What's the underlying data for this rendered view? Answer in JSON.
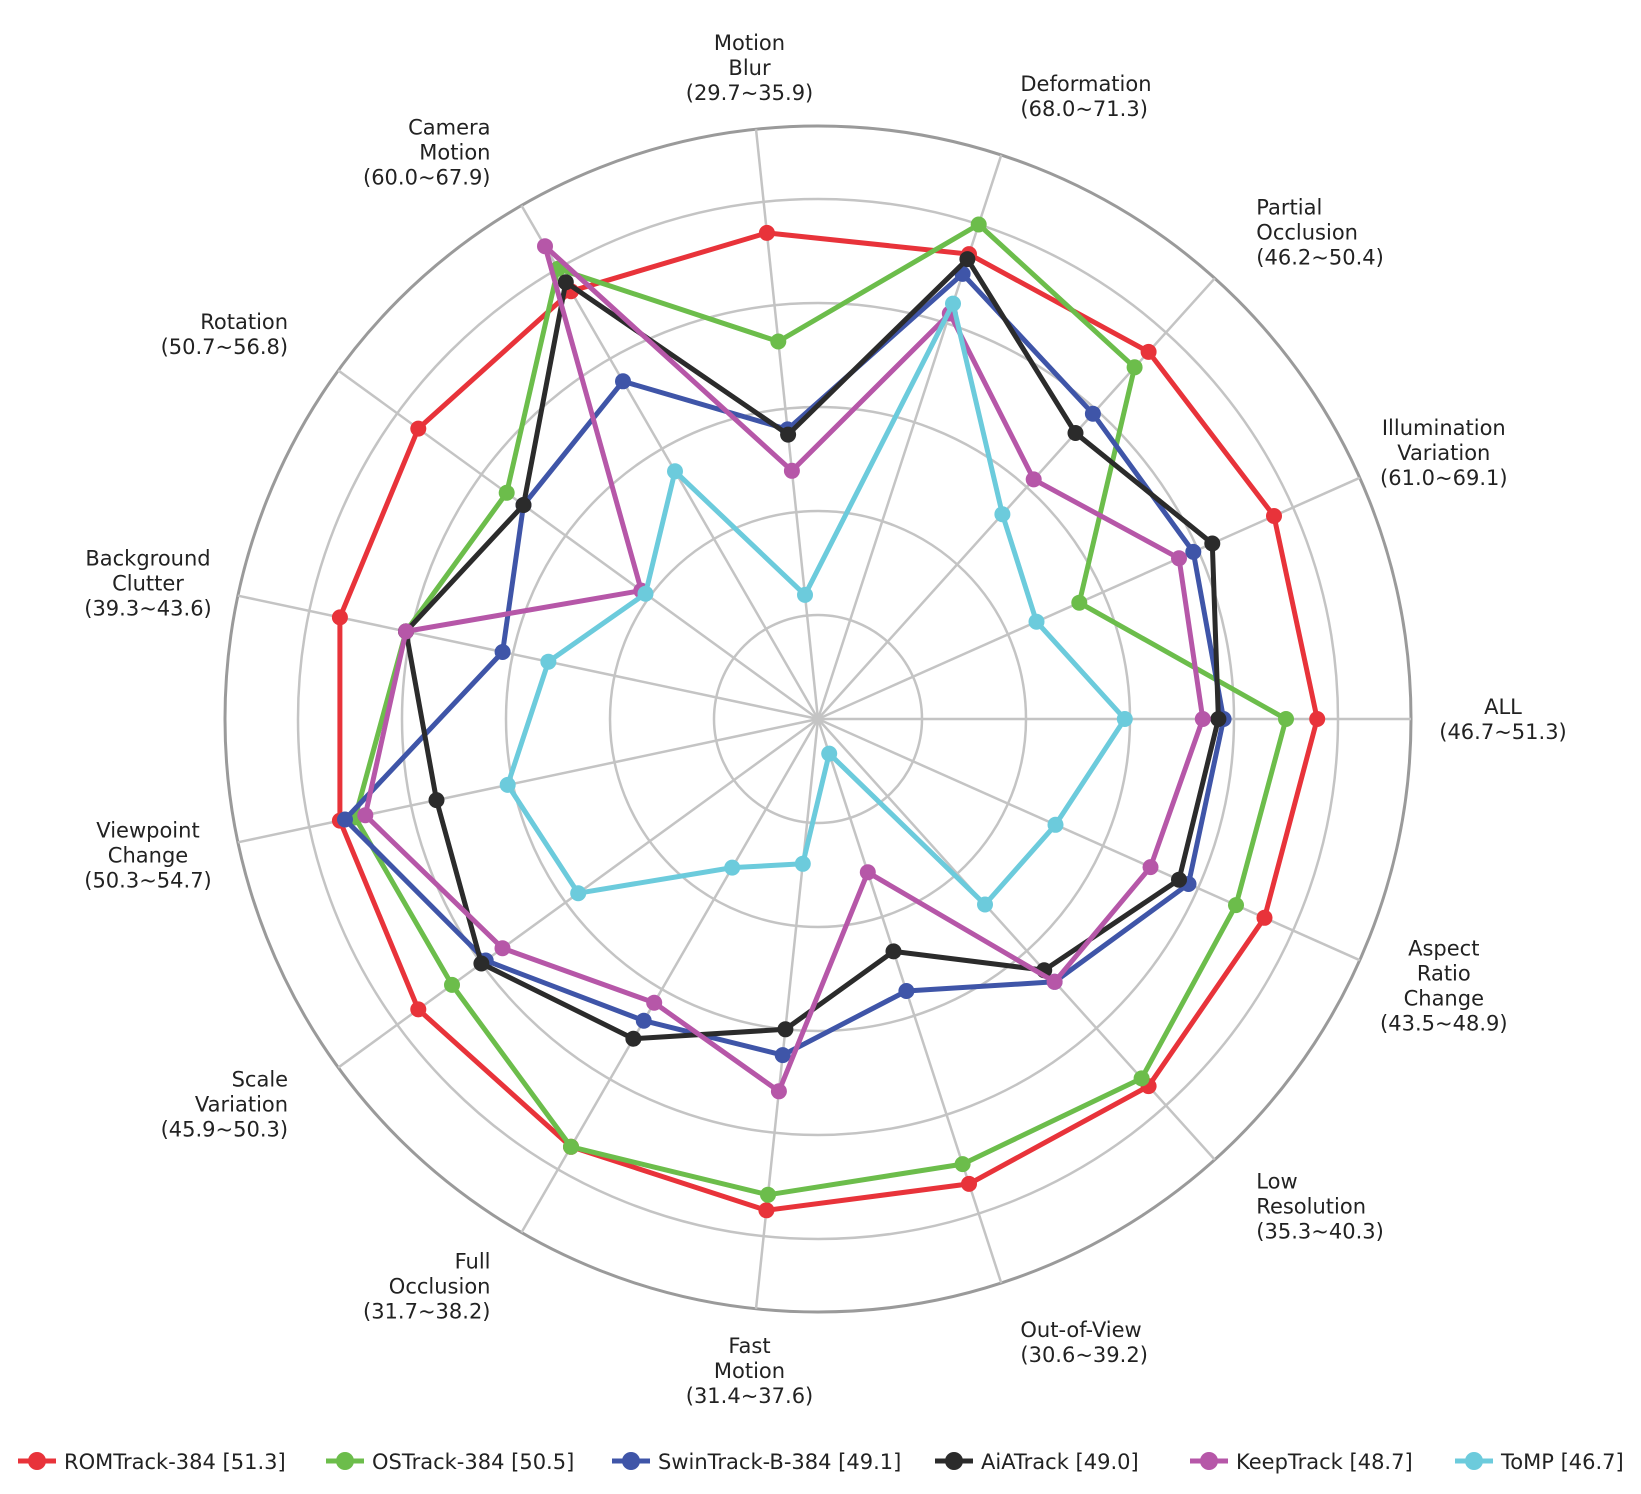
{
  "chart_data": {
    "type": "radar",
    "title": "",
    "grid": true,
    "legend_position": "bottom",
    "value_scale": "normalized per-axis between the printed min and max",
    "axes": [
      {
        "label": [
          "ALL"
        ],
        "range": "(46.7~51.3)"
      },
      {
        "label": [
          "Illumination",
          "Variation"
        ],
        "range": "(61.0~69.1)"
      },
      {
        "label": [
          "Partial",
          "Occlusion"
        ],
        "range": "(46.2~50.4)"
      },
      {
        "label": [
          "Deformation"
        ],
        "range": "(68.0~71.3)"
      },
      {
        "label": [
          "Motion",
          "Blur"
        ],
        "range": "(29.7~35.9)"
      },
      {
        "label": [
          "Camera",
          "Motion"
        ],
        "range": "(60.0~67.9)"
      },
      {
        "label": [
          "Rotation"
        ],
        "range": "(50.7~56.8)"
      },
      {
        "label": [
          "Background",
          "Clutter"
        ],
        "range": "(39.3~43.6)"
      },
      {
        "label": [
          "Viewpoint",
          "Change"
        ],
        "range": "(50.3~54.7)"
      },
      {
        "label": [
          "Scale",
          "Variation"
        ],
        "range": "(45.9~50.3)"
      },
      {
        "label": [
          "Full",
          "Occlusion"
        ],
        "range": "(31.7~38.2)"
      },
      {
        "label": [
          "Fast",
          "Motion"
        ],
        "range": "(31.4~37.6)"
      },
      {
        "label": [
          "Out-of-View"
        ],
        "range": "(30.6~39.2)"
      },
      {
        "label": [
          "Low",
          "Resolution"
        ],
        "range": "(35.3~40.3)"
      },
      {
        "label": [
          "Aspect",
          "Ratio",
          "Change"
        ],
        "range": "(43.5~48.9)"
      }
    ],
    "series": [
      {
        "name": "ROMTrack-384 [51.3]",
        "color": "#e8333a",
        "values": [
          0.96,
          0.96,
          0.95,
          0.94,
          0.94,
          0.95,
          0.95,
          0.94,
          0.94,
          0.95,
          0.95,
          0.95,
          0.94,
          0.95,
          0.94
        ]
      },
      {
        "name": "OSTrack-384 [50.5]",
        "color": "#6cbd4b",
        "values": [
          0.9,
          0.55,
          0.91,
          1.0,
          0.73,
          1.0,
          0.74,
          0.81,
          0.91,
          0.87,
          0.95,
          0.92,
          0.9,
          0.93,
          0.88
        ]
      },
      {
        "name": "SwinTrack-B-384 [49.1]",
        "color": "#3f55a8",
        "values": [
          0.78,
          0.79,
          0.79,
          0.9,
          0.56,
          0.75,
          0.7,
          0.62,
          0.93,
          0.79,
          0.67,
          0.65,
          0.55,
          0.68,
          0.78
        ]
      },
      {
        "name": "AiATrack [49.0]",
        "color": "#2b2b2b",
        "values": [
          0.77,
          0.83,
          0.74,
          0.93,
          0.55,
          0.97,
          0.7,
          0.81,
          0.75,
          0.8,
          0.71,
          0.6,
          0.47,
          0.65,
          0.76
        ]
      },
      {
        "name": "KeepTrack [48.7]",
        "color": "#b657a8",
        "values": [
          0.74,
          0.76,
          0.62,
          0.82,
          0.48,
          1.05,
          0.42,
          0.81,
          0.89,
          0.75,
          0.63,
          0.72,
          0.31,
          0.68,
          0.7
        ]
      },
      {
        "name": "ToMP [46.7]",
        "color": "#6ccbdc",
        "values": [
          0.59,
          0.46,
          0.53,
          0.84,
          0.24,
          0.55,
          0.41,
          0.53,
          0.61,
          0.57,
          0.33,
          0.28,
          0.07,
          0.48,
          0.5
        ]
      }
    ]
  }
}
